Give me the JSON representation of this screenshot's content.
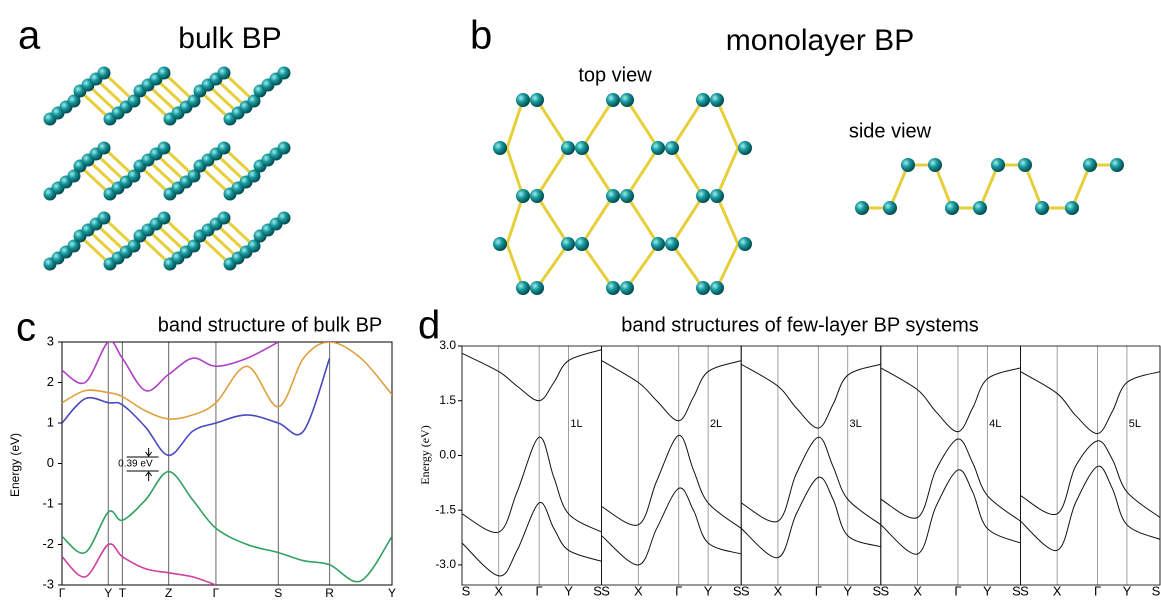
{
  "panels": [
    {
      "label": "a",
      "title": "bulk BP"
    },
    {
      "label": "b",
      "title": "monolayer BP",
      "views": [
        "top view",
        "side view"
      ]
    }
  ],
  "chart_data": [
    {
      "type": "line",
      "label": "c",
      "title": "band structure of bulk BP",
      "ylabel": "Energy (eV)",
      "annotation": "0.39 eV",
      "xlim": [
        0,
        3.28
      ],
      "xticks": [
        {
          "value": 0,
          "label": "Γ"
        },
        {
          "value": 0.46,
          "label": "Y"
        },
        {
          "value": 0.6,
          "label": "T"
        },
        {
          "value": 1.06,
          "label": "Z"
        },
        {
          "value": 1.53,
          "label": "Γ"
        },
        {
          "value": 2.15,
          "label": "S"
        },
        {
          "value": 2.66,
          "label": "R"
        },
        {
          "value": 3.28,
          "label": "Y"
        }
      ],
      "ylim": [
        -3,
        3
      ],
      "yticks": [
        -3,
        -2,
        -1,
        0,
        1,
        2,
        3
      ],
      "x": [
        0,
        0.23,
        0.46,
        0.6,
        0.83,
        1.06,
        1.3,
        1.53,
        1.84,
        2.15,
        2.4,
        2.66,
        2.97,
        3.28
      ],
      "series": [
        {
          "color": "#b040c8",
          "values": [
            2.3,
            2.0,
            3.0,
            2.6,
            1.8,
            2.2,
            2.6,
            2.4,
            2.6,
            3.0,
            null,
            null,
            null,
            null
          ]
        },
        {
          "color": "#4848c0",
          "values": [
            1.0,
            1.6,
            1.5,
            1.45,
            0.9,
            0.2,
            0.8,
            1.0,
            1.2,
            1.0,
            0.8,
            2.6,
            null,
            null
          ]
        },
        {
          "color": "#e0a040",
          "values": [
            1.5,
            1.8,
            1.75,
            1.65,
            1.3,
            1.1,
            1.2,
            1.5,
            2.4,
            1.4,
            2.6,
            3.0,
            2.6,
            1.7
          ]
        },
        {
          "color": "#30a060",
          "values": [
            -1.8,
            -2.2,
            -1.2,
            -1.4,
            -0.9,
            -0.2,
            -0.9,
            -1.6,
            -2.0,
            -2.2,
            -2.4,
            -2.5,
            -2.9,
            -1.8
          ]
        },
        {
          "color": "#d040a0",
          "values": [
            -2.3,
            -2.8,
            -2.0,
            -2.3,
            -2.6,
            -2.7,
            -2.8,
            -3.0,
            null,
            null,
            null,
            null,
            null,
            null
          ]
        }
      ]
    },
    {
      "type": "line",
      "label": "d",
      "title": "band structures of few-layer BP systems",
      "ylabel": "Energy (eV)",
      "xlim": [
        0,
        3.8
      ],
      "xticks": [
        {
          "value": 0,
          "label": "S"
        },
        {
          "value": 1,
          "label": "X"
        },
        {
          "value": 2.1,
          "label": "Γ"
        },
        {
          "value": 2.9,
          "label": "Y"
        },
        {
          "value": 3.8,
          "label": "S"
        }
      ],
      "ylim": [
        -3.55,
        3.0
      ],
      "yticks": [
        {
          "value": 3,
          "label": "3.0"
        },
        1.5,
        {
          "value": 0,
          "label": "0.0"
        },
        -1.5,
        {
          "value": -3,
          "label": "-3.0"
        }
      ],
      "x": [
        0,
        1,
        1.5,
        2.1,
        2.5,
        2.9,
        3.8
      ],
      "panels": [
        {
          "label": "1L",
          "bands": [
            [
              2.8,
              2.3,
              1.9,
              1.5,
              2.0,
              2.6,
              2.9
            ],
            [
              -1.6,
              -2.1,
              -1.0,
              0.5,
              -0.6,
              -1.6,
              -2.1
            ],
            [
              -2.4,
              -3.3,
              -2.6,
              -1.3,
              -2.0,
              -2.6,
              -2.9
            ]
          ]
        },
        {
          "label": "2L",
          "bands": [
            [
              2.6,
              2.0,
              1.5,
              0.95,
              1.6,
              2.3,
              2.6
            ],
            [
              -1.4,
              -1.9,
              -0.7,
              0.55,
              -0.4,
              -1.3,
              -2.0
            ],
            [
              -2.2,
              -3.0,
              -2.0,
              -0.9,
              -1.5,
              -2.4,
              -2.7
            ]
          ]
        },
        {
          "label": "3L",
          "bands": [
            [
              2.5,
              1.9,
              1.3,
              0.75,
              1.4,
              2.2,
              2.5
            ],
            [
              -1.3,
              -1.8,
              -0.5,
              0.5,
              -0.3,
              -1.2,
              -1.9
            ],
            [
              -2.0,
              -2.8,
              -1.6,
              -0.6,
              -1.2,
              -2.2,
              -2.5
            ]
          ]
        },
        {
          "label": "4L",
          "bands": [
            [
              2.4,
              1.8,
              1.2,
              0.65,
              1.3,
              2.1,
              2.4
            ],
            [
              -1.2,
              -1.7,
              -0.4,
              0.45,
              -0.2,
              -1.1,
              -1.8
            ],
            [
              -1.9,
              -2.7,
              -1.4,
              -0.4,
              -1.0,
              -2.0,
              -2.4
            ]
          ]
        },
        {
          "label": "5L",
          "bands": [
            [
              2.3,
              1.7,
              1.1,
              0.6,
              1.2,
              2.0,
              2.3
            ],
            [
              -1.1,
              -1.6,
              -0.3,
              0.4,
              -0.1,
              -1.0,
              -1.7
            ],
            [
              -1.8,
              -2.6,
              -1.3,
              -0.3,
              -0.9,
              -1.9,
              -2.3
            ]
          ]
        }
      ]
    }
  ]
}
